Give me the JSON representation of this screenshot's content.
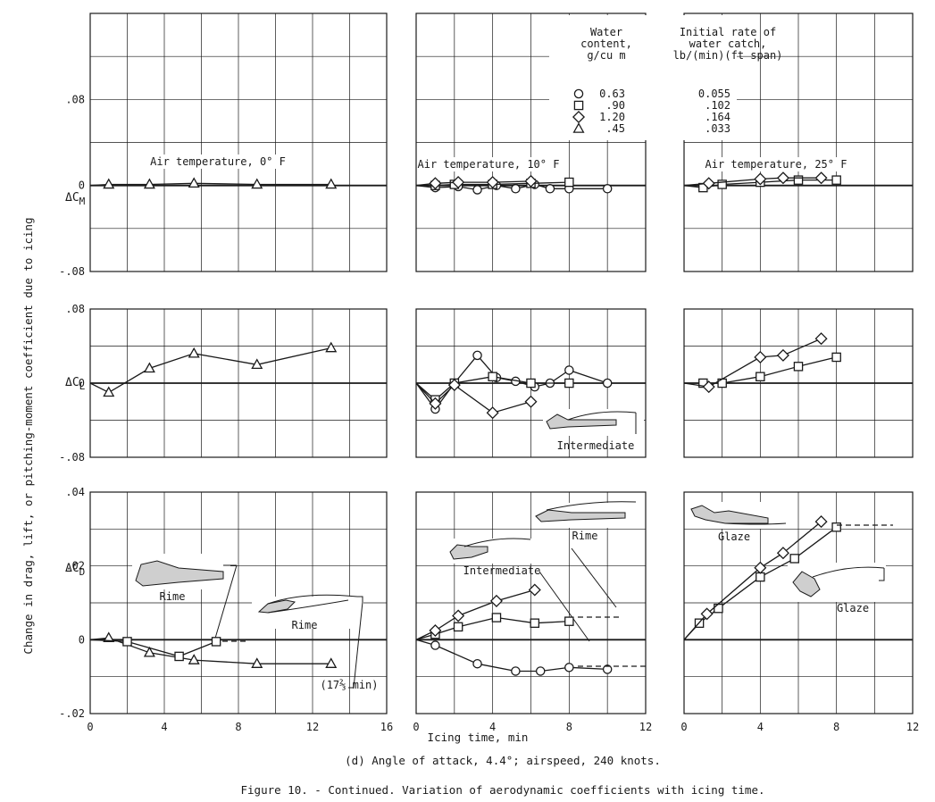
{
  "figure": {
    "y_axis_label": "Change in drag, lift, or pitching-moment coefficient due to icing",
    "x_axis_label": "Icing time, min",
    "subcaption": "(d) Angle of attack, 4.4°; airspeed, 240 knots.",
    "caption": "Figure 10. - Continued.  Variation of aerodynamic coefficients with icing time."
  },
  "legend": {
    "col1_header": [
      "Water",
      "content,",
      "g/cu m"
    ],
    "col2_header": [
      "Initial rate of",
      "water catch,",
      "lb/(min)(ft span)"
    ],
    "rows": [
      {
        "symbol": "circle",
        "content": "0.63",
        "rate": "0.055"
      },
      {
        "symbol": "square",
        "content": ".90",
        "rate": ".102"
      },
      {
        "symbol": "diamond",
        "content": "1.20",
        "rate": ".164"
      },
      {
        "symbol": "triangle",
        "content": ".45",
        "rate": ".033"
      }
    ]
  },
  "row_labels": {
    "cm": {
      "main": "ΔC",
      "sub": "M"
    },
    "cl": {
      "main": "ΔC",
      "sub": "L"
    },
    "cd": {
      "main": "ΔC",
      "sub": "D"
    }
  },
  "y_ticks": {
    "cm": [
      {
        "v": 0.08,
        "t": ".08"
      },
      {
        "v": 0,
        "t": "0"
      },
      {
        "v": -0.08,
        "t": "-.08"
      }
    ],
    "cl": [
      {
        "v": 0.08,
        "t": ".08"
      },
      {
        "v": 0,
        "t": "0"
      },
      {
        "v": -0.08,
        "t": "-.08"
      }
    ],
    "cd": [
      {
        "v": 0.04,
        "t": ".04"
      },
      {
        "v": 0.02,
        "t": ".02"
      },
      {
        "v": 0,
        "t": "0"
      },
      {
        "v": -0.02,
        "t": "-.02"
      }
    ]
  },
  "x_ticks": {
    "c0": [
      {
        "v": 0,
        "t": "0"
      },
      {
        "v": 4,
        "t": "4"
      },
      {
        "v": 8,
        "t": "8"
      },
      {
        "v": 12,
        "t": "12"
      },
      {
        "v": 16,
        "t": "16"
      }
    ],
    "c1": [
      {
        "v": 0,
        "t": "0"
      },
      {
        "v": 4,
        "t": "4"
      },
      {
        "v": 8,
        "t": "8"
      },
      {
        "v": 12,
        "t": "12"
      }
    ],
    "c2": [
      {
        "v": 0,
        "t": "0"
      },
      {
        "v": 4,
        "t": "4"
      },
      {
        "v": 8,
        "t": "8"
      },
      {
        "v": 12,
        "t": "12"
      }
    ]
  },
  "annotations": {
    "temp0": "Air temperature, 0° F",
    "temp10": "Air temperature, 10° F",
    "temp25": "Air temperature, 25° F",
    "rime_a": "Rime",
    "rime_b": "Rime",
    "rime_c": "Rime",
    "inter_cl": "Intermediate",
    "inter_cd": "Intermediate",
    "glaze_a": "Glaze",
    "glaze_b": "Glaze",
    "time_note": "(17⅔ min)"
  },
  "chart_data": [
    {
      "panel": "cm-0",
      "type": "line",
      "ylabel": "ΔCM",
      "xlim": [
        0,
        16
      ],
      "ylim": [
        -0.08,
        0.16
      ],
      "series": [
        {
          "marker": "triangle",
          "x": [
            1,
            3.2,
            5.6,
            9,
            13
          ],
          "y": [
            0.001,
            0.001,
            0.002,
            0.001,
            0.001
          ]
        }
      ]
    },
    {
      "panel": "cm-10",
      "type": "line",
      "ylabel": "ΔCM",
      "xlim": [
        0,
        12
      ],
      "ylim": [
        -0.08,
        0.16
      ],
      "series": [
        {
          "marker": "circle",
          "x": [
            1,
            2.2,
            3.2,
            4.2,
            5.2,
            6.2,
            7,
            8,
            10
          ],
          "y": [
            -0.002,
            -0.001,
            -0.004,
            0,
            -0.003,
            0.001,
            -0.003,
            -0.003,
            -0.003
          ]
        },
        {
          "marker": "square",
          "x": [
            1,
            2,
            4,
            6,
            8
          ],
          "y": [
            0,
            0.001,
            0.001,
            0.002,
            0.003
          ]
        },
        {
          "marker": "diamond",
          "x": [
            1,
            2.2,
            4,
            6
          ],
          "y": [
            0.002,
            0.003,
            0.003,
            0.004
          ]
        }
      ]
    },
    {
      "panel": "cm-25",
      "type": "line",
      "ylabel": "ΔCM",
      "xlim": [
        0,
        12
      ],
      "ylim": [
        -0.08,
        0.16
      ],
      "series": [
        {
          "marker": "square",
          "x": [
            1,
            2,
            4,
            6,
            8
          ],
          "y": [
            -0.002,
            0.001,
            0.003,
            0.005,
            0.005
          ]
        },
        {
          "marker": "diamond",
          "x": [
            1.3,
            4,
            5.2,
            7.2
          ],
          "y": [
            0.002,
            0.006,
            0.007,
            0.007
          ]
        }
      ]
    },
    {
      "panel": "cl-0",
      "type": "line",
      "ylabel": "ΔCL",
      "xlim": [
        0,
        16
      ],
      "ylim": [
        -0.08,
        0.08
      ],
      "series": [
        {
          "marker": "triangle",
          "x": [
            1,
            3.2,
            5.6,
            9,
            13
          ],
          "y": [
            -0.01,
            0.016,
            0.032,
            0.02,
            0.038
          ]
        }
      ]
    },
    {
      "panel": "cl-10",
      "type": "line",
      "ylabel": "ΔCL",
      "xlim": [
        0,
        12
      ],
      "ylim": [
        -0.08,
        0.08
      ],
      "series": [
        {
          "marker": "circle",
          "x": [
            1,
            2,
            3.2,
            4.2,
            5.2,
            6.2,
            7,
            8,
            10
          ],
          "y": [
            -0.028,
            0,
            0.03,
            0.006,
            0.002,
            -0.004,
            0,
            0.014,
            0
          ]
        },
        {
          "marker": "square",
          "x": [
            1,
            2,
            4,
            6,
            8
          ],
          "y": [
            -0.018,
            0,
            0.007,
            0,
            0
          ]
        },
        {
          "marker": "diamond",
          "x": [
            1,
            2,
            4,
            6
          ],
          "y": [
            -0.022,
            -0.002,
            -0.032,
            -0.02
          ]
        }
      ]
    },
    {
      "panel": "cl-25",
      "type": "line",
      "ylabel": "ΔCL",
      "xlim": [
        0,
        12
      ],
      "ylim": [
        -0.08,
        0.08
      ],
      "series": [
        {
          "marker": "square",
          "x": [
            1,
            2,
            4,
            6,
            8
          ],
          "y": [
            0,
            0,
            0.007,
            0.018,
            0.028
          ]
        },
        {
          "marker": "diamond",
          "x": [
            1.3,
            4,
            5.2,
            7.2
          ],
          "y": [
            -0.004,
            0.028,
            0.03,
            0.048
          ]
        }
      ]
    },
    {
      "panel": "cd-0",
      "type": "line",
      "ylabel": "ΔCD",
      "xlim": [
        0,
        16
      ],
      "ylim": [
        -0.02,
        0.04
      ],
      "series": [
        {
          "marker": "triangle",
          "x": [
            1,
            3.2,
            5.6,
            9,
            13
          ],
          "y": [
            0.0005,
            -0.0035,
            -0.0055,
            -0.0065,
            -0.0065
          ]
        },
        {
          "marker": "square",
          "x": [
            2,
            4.8,
            6.8
          ],
          "y": [
            -0.0005,
            -0.0045,
            -0.0005
          ]
        }
      ]
    },
    {
      "panel": "cd-10",
      "type": "line",
      "ylabel": "ΔCD",
      "xlim": [
        0,
        12
      ],
      "ylim": [
        -0.02,
        0.04
      ],
      "series": [
        {
          "marker": "circle",
          "x": [
            1,
            3.2,
            5.2,
            6.5,
            8,
            10
          ],
          "y": [
            -0.0015,
            -0.0065,
            -0.0085,
            -0.0085,
            -0.0075,
            -0.008
          ]
        },
        {
          "marker": "square",
          "x": [
            1,
            2.2,
            4.2,
            6.2,
            8
          ],
          "y": [
            0.0015,
            0.0035,
            0.006,
            0.0045,
            0.005
          ]
        },
        {
          "marker": "diamond",
          "x": [
            1,
            2.2,
            4.2,
            6.2
          ],
          "y": [
            0.0025,
            0.0065,
            0.0105,
            0.0135
          ]
        }
      ]
    },
    {
      "panel": "cd-25",
      "type": "line",
      "ylabel": "ΔCD",
      "xlim": [
        0,
        12
      ],
      "ylim": [
        -0.02,
        0.04
      ],
      "series": [
        {
          "marker": "square",
          "x": [
            0.8,
            1.8,
            4,
            5.8,
            8
          ],
          "y": [
            0.0045,
            0.0085,
            0.017,
            0.022,
            0.0305
          ]
        },
        {
          "marker": "diamond",
          "x": [
            1.2,
            4,
            5.2,
            7.2
          ],
          "y": [
            0.007,
            0.0195,
            0.0235,
            0.032
          ]
        }
      ]
    }
  ]
}
